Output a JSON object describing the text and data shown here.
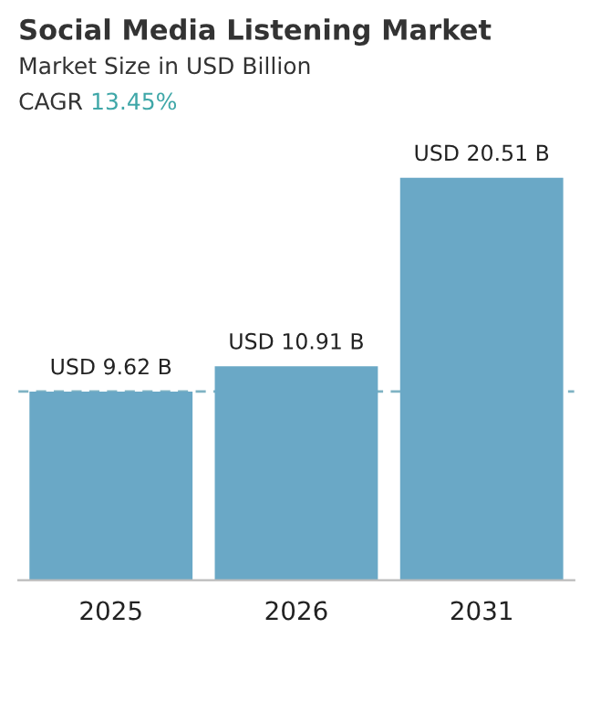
{
  "chart_data": {
    "type": "bar",
    "title": "Social Media Listening Market",
    "subtitle": "Market Size in USD Billion",
    "annotations": [
      "CAGR",
      "13.45%"
    ],
    "categories": [
      "2025",
      "2026",
      "2031"
    ],
    "values": [
      9.62,
      10.91,
      20.51
    ],
    "color": "#6aa8c6",
    "value_labels": [
      "USD 9.62 B",
      "USD 10.91 B",
      "USD 20.51 B"
    ],
    "ref_lines": [
      {
        "axis": "y",
        "value": 9.62,
        "color": "#7fb3c4",
        "line_style": "dashed"
      }
    ],
    "grid": false,
    "legend": false
  }
}
